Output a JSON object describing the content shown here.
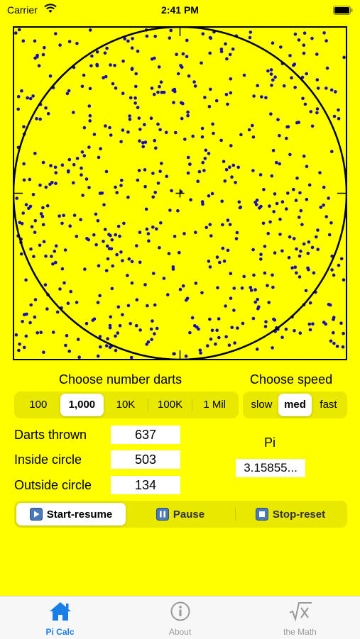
{
  "status": {
    "carrier": "Carrier",
    "time": "2:41 PM"
  },
  "board": {
    "dot_count": 637,
    "dot_color": "#1a0cb8",
    "line_color": "#000000"
  },
  "darts": {
    "title": "Choose number darts",
    "options": [
      "100",
      "1,000",
      "10K",
      "100K",
      "1 Mil"
    ],
    "selected": 1
  },
  "speed": {
    "title": "Choose speed",
    "options": [
      "slow",
      "med",
      "fast"
    ],
    "selected": 1
  },
  "stats": {
    "thrown_label": "Darts thrown",
    "thrown_value": "637",
    "inside_label": "Inside circle",
    "inside_value": "503",
    "outside_label": "Outside circle",
    "outside_value": "134"
  },
  "pi": {
    "label": "Pi",
    "value": "3.15855..."
  },
  "controls": {
    "start": "Start-resume",
    "pause": "Pause",
    "stop": "Stop-reset"
  },
  "tabs": [
    {
      "label": "Pi Calc",
      "icon": "house-icon",
      "active": true
    },
    {
      "label": "About",
      "icon": "info-icon",
      "active": false
    },
    {
      "label": "the Math",
      "icon": "square-root-icon",
      "active": false
    }
  ],
  "colors": {
    "background": "#ffff00",
    "accent": "#1a7ee8",
    "segment": "#e8e800"
  }
}
